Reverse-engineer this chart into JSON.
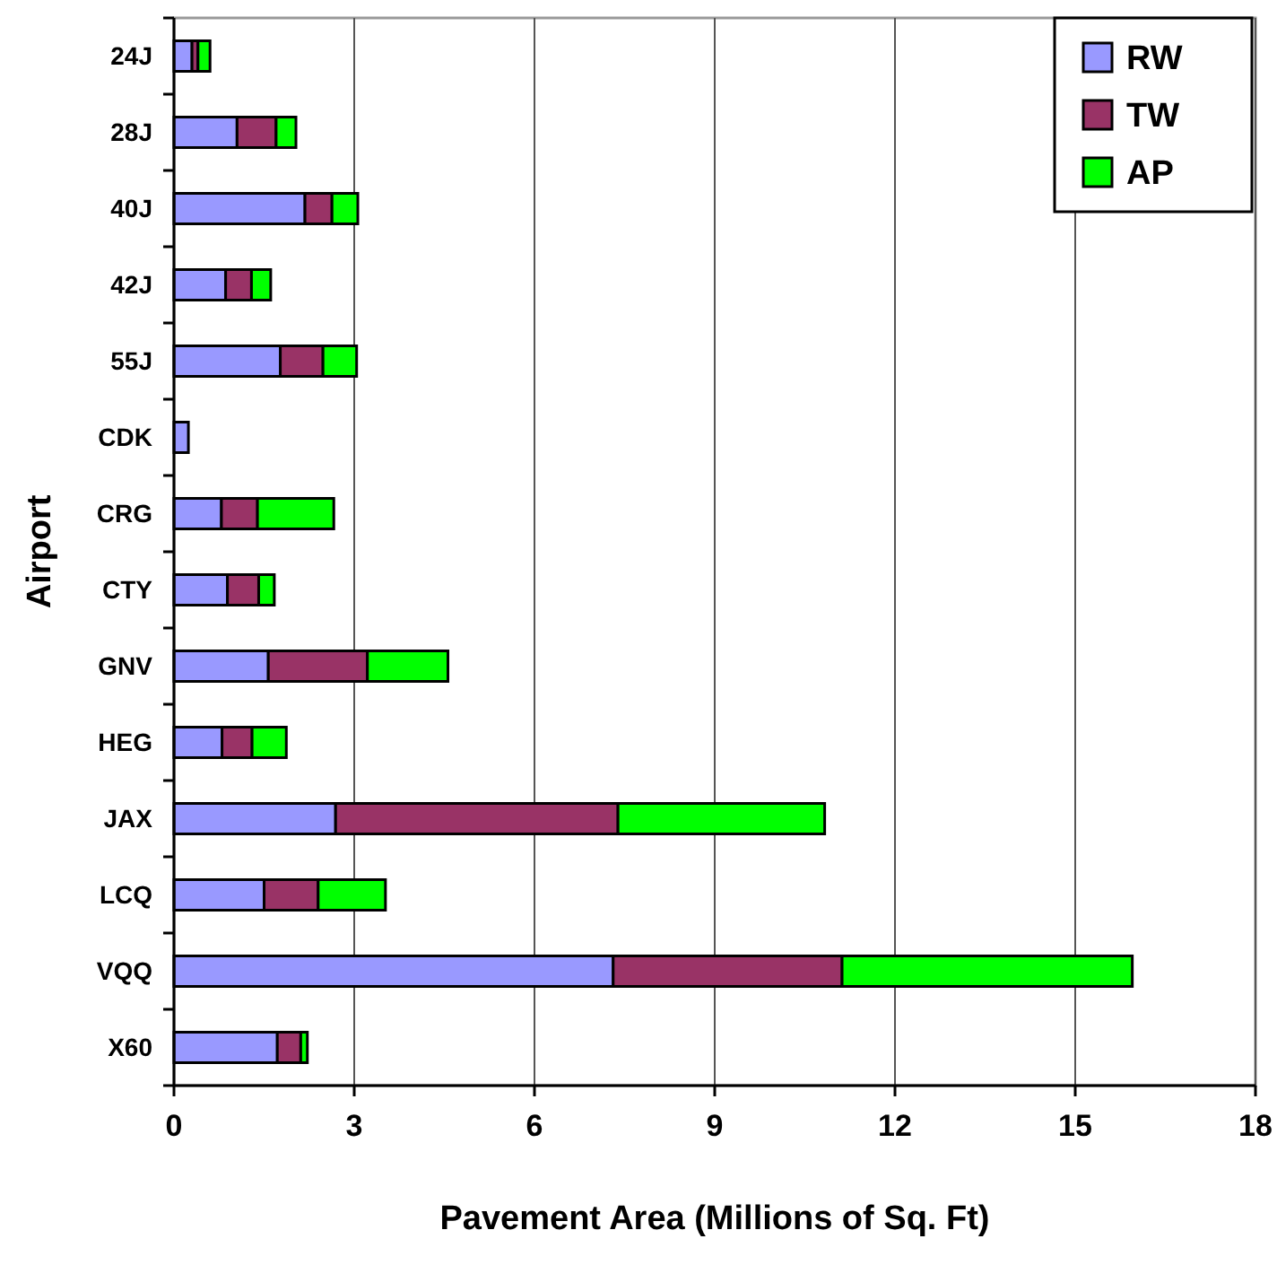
{
  "chart_data": {
    "type": "bar",
    "orientation": "horizontal",
    "stacked": true,
    "xlabel": "Pavement Area (Millions of Sq. Ft)",
    "ylabel": "Airport",
    "categories": [
      "24J",
      "28J",
      "40J",
      "42J",
      "55J",
      "CDK",
      "CRG",
      "CTY",
      "GNV",
      "HEG",
      "JAX",
      "LCQ",
      "VQQ",
      "X60"
    ],
    "series": [
      {
        "name": "RW",
        "color": "#9999ff",
        "values": [
          0.3,
          1.05,
          2.18,
          0.86,
          1.77,
          0.24,
          0.79,
          0.89,
          1.57,
          0.8,
          2.69,
          1.5,
          7.31,
          1.72
        ]
      },
      {
        "name": "TW",
        "color": "#993366",
        "values": [
          0.1,
          0.65,
          0.45,
          0.43,
          0.71,
          0,
          0.6,
          0.52,
          1.65,
          0.5,
          4.7,
          0.9,
          3.81,
          0.39
        ]
      },
      {
        "name": "AP",
        "color": "#00ff00",
        "values": [
          0.2,
          0.33,
          0.43,
          0.32,
          0.56,
          0,
          1.27,
          0.26,
          1.34,
          0.57,
          3.44,
          1.12,
          4.83,
          0.11
        ]
      }
    ],
    "xlim": [
      0,
      18
    ],
    "xticks": [
      0,
      3,
      6,
      9,
      12,
      15,
      18
    ],
    "grid": "x",
    "legend": "top right"
  }
}
